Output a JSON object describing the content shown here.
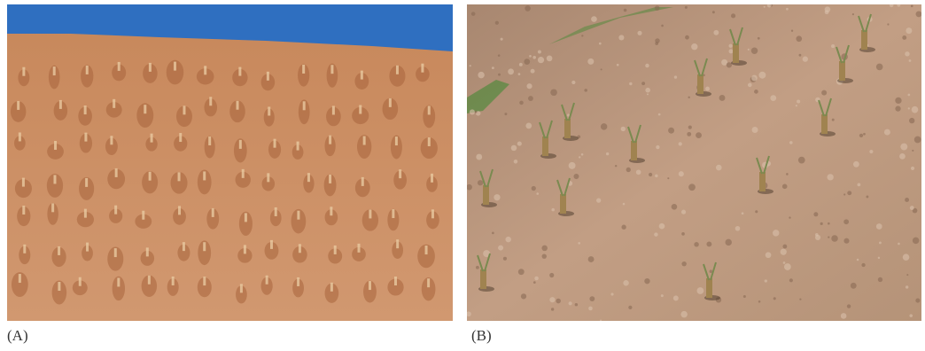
{
  "panels": [
    {
      "label": "(A)"
    },
    {
      "label": "(B)"
    }
  ]
}
